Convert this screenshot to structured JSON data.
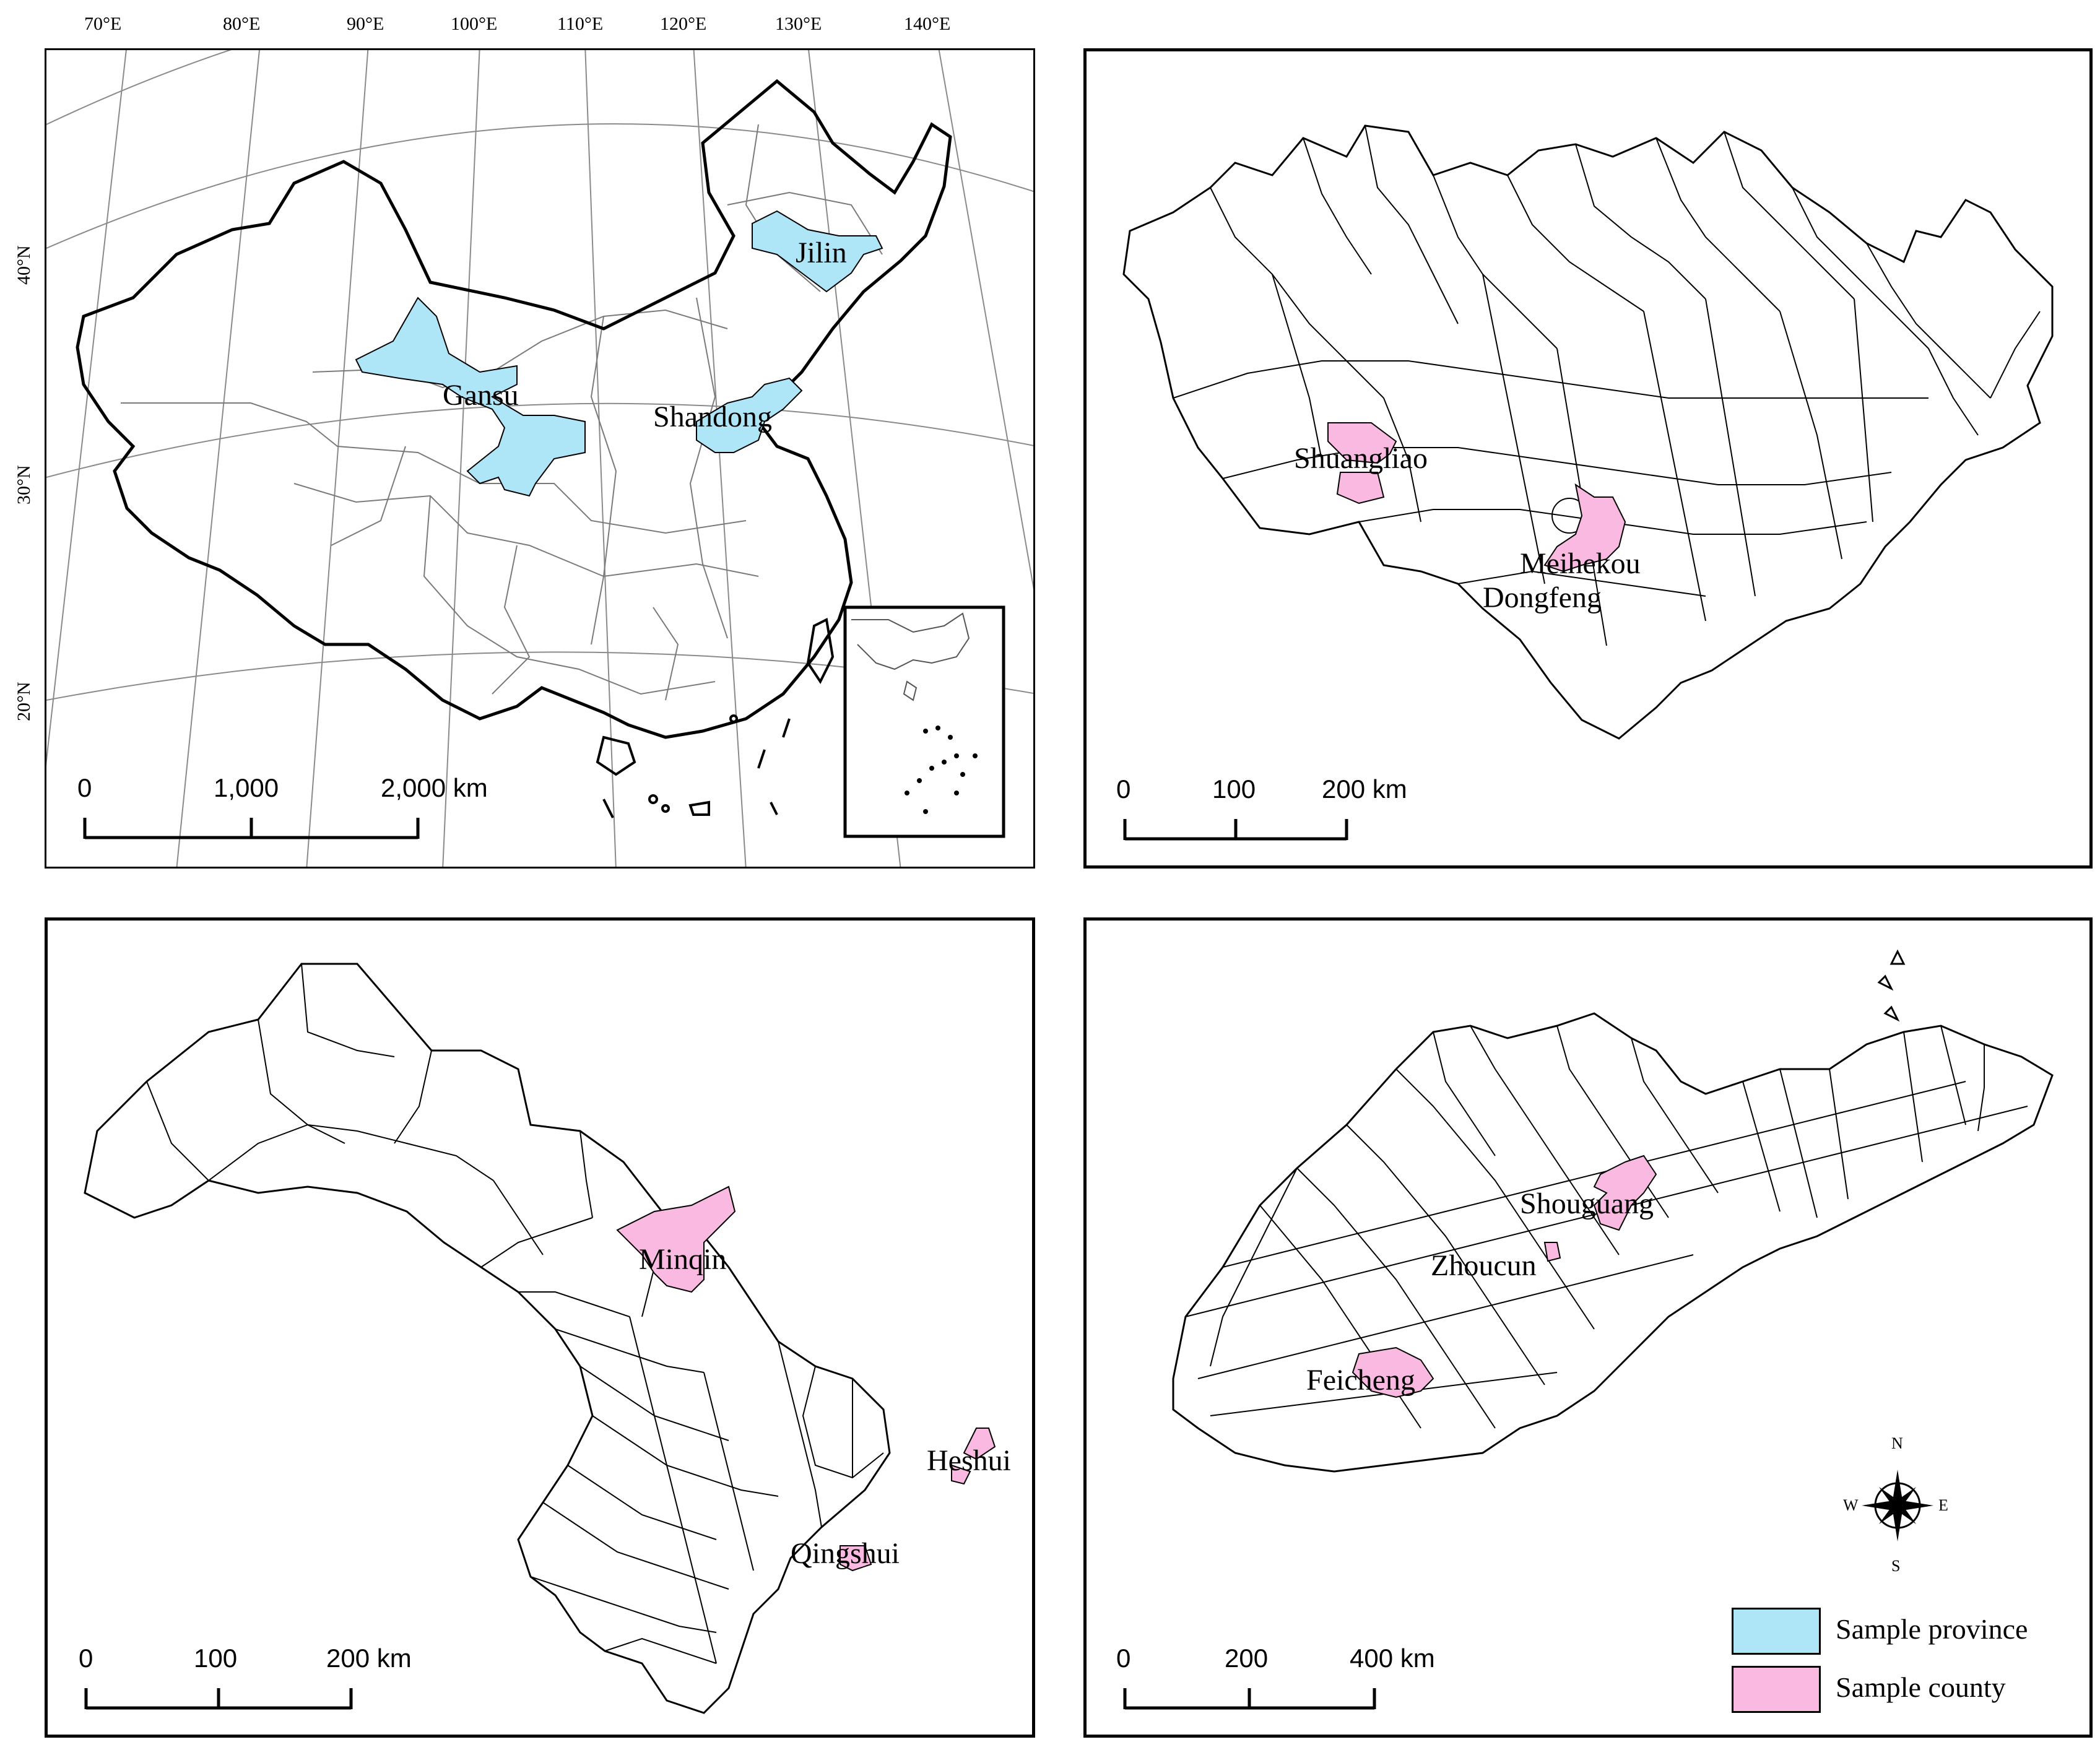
{
  "china_map": {
    "longitude_labels": [
      "70°E",
      "80°E",
      "90°E",
      "100°E",
      "110°E",
      "120°E",
      "130°E",
      "140°E"
    ],
    "latitude_labels": [
      "40°N",
      "30°N",
      "20°N"
    ],
    "province_labels": [
      "Jilin",
      "Gansu",
      "Shandong"
    ],
    "scale_labels": [
      "0",
      "1,000",
      "2,000 km"
    ]
  },
  "jilin_map": {
    "county_labels": [
      "Shuangliao",
      "Meihekou",
      "Dongfeng"
    ],
    "scale_labels": [
      "0",
      "100",
      "200 km"
    ]
  },
  "gansu_map": {
    "county_labels": [
      "Minqin",
      "Heshui",
      "Qingshui"
    ],
    "scale_labels": [
      "0",
      "100",
      "200 km"
    ]
  },
  "shandong_map": {
    "county_labels": [
      "Shouguang",
      "Zhoucun",
      "Feicheng"
    ],
    "scale_labels": [
      "0",
      "200",
      "400 km"
    ]
  },
  "compass": {
    "n": "N",
    "s": "S",
    "e": "E",
    "w": "W"
  },
  "legend": {
    "items": [
      {
        "label": "Sample province",
        "color": "#aee6f8"
      },
      {
        "label": "Sample county",
        "color": "#f9b9e0"
      }
    ]
  },
  "colors": {
    "province_fill": "#aee6f8",
    "county_fill": "#f9b9e0",
    "boundary": "#000000",
    "graticule": "#8a8a8a"
  }
}
